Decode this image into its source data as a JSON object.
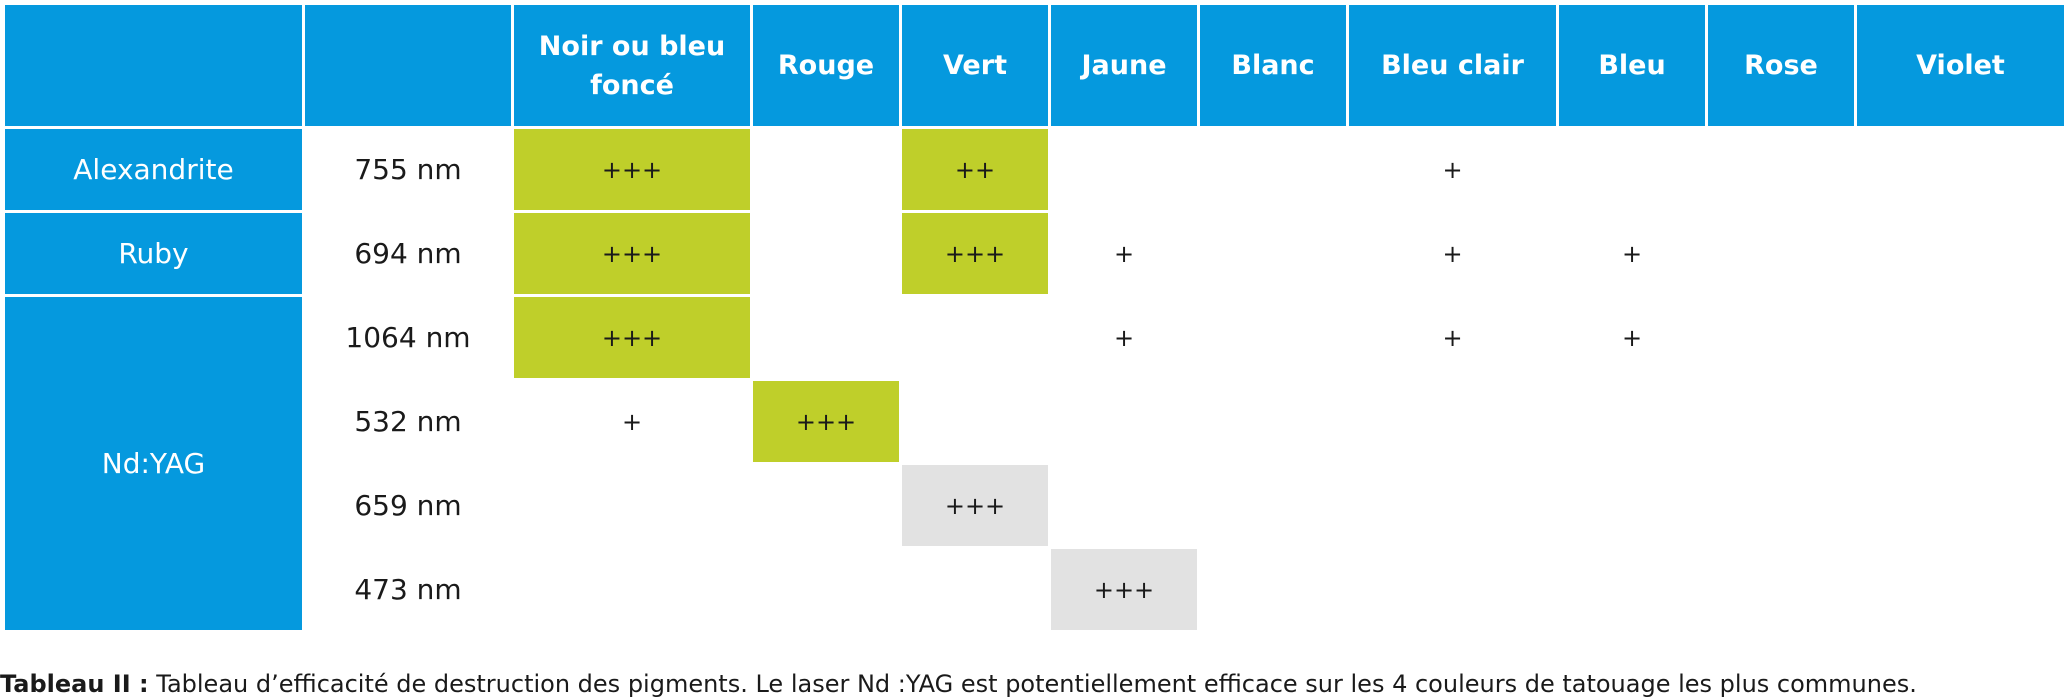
{
  "table": {
    "header_corner_1": "",
    "header_corner_2": "",
    "columns": [
      {
        "line1": "Noir ou bleu",
        "line2": "foncé"
      },
      {
        "line1": "Rouge",
        "line2": ""
      },
      {
        "line1": "Vert",
        "line2": ""
      },
      {
        "line1": "Jaune",
        "line2": ""
      },
      {
        "line1": "Blanc",
        "line2": ""
      },
      {
        "line1": "Bleu clair",
        "line2": ""
      },
      {
        "line1": "Bleu",
        "line2": ""
      },
      {
        "line1": "Rose",
        "line2": ""
      },
      {
        "line1": "Violet",
        "line2": ""
      }
    ],
    "lasers": {
      "alexandrite": "Alexandrite",
      "ruby": "Ruby",
      "ndyag": "Nd:YAG"
    },
    "rows": [
      {
        "wavelength": "755 nm",
        "cells": [
          "+++",
          "",
          "++",
          "",
          "",
          "+",
          "",
          "",
          ""
        ],
        "highlight": [
          "green",
          "",
          "green",
          "",
          "",
          "",
          "",
          "",
          ""
        ]
      },
      {
        "wavelength": "694 nm",
        "cells": [
          "+++",
          "",
          "+++",
          "+",
          "",
          "+",
          "+",
          "",
          ""
        ],
        "highlight": [
          "green",
          "",
          "green",
          "",
          "",
          "",
          "",
          "",
          ""
        ]
      },
      {
        "wavelength": "1064 nm",
        "cells": [
          "+++",
          "",
          "",
          "+",
          "",
          "+",
          "+",
          "",
          ""
        ],
        "highlight": [
          "green",
          "",
          "",
          "",
          "",
          "",
          "",
          "",
          ""
        ]
      },
      {
        "wavelength": "532 nm",
        "cells": [
          "+",
          "+++",
          "",
          "",
          "",
          "",
          "",
          "",
          ""
        ],
        "highlight": [
          "",
          "green",
          "",
          "",
          "",
          "",
          "",
          "",
          ""
        ]
      },
      {
        "wavelength": "659 nm",
        "cells": [
          "",
          "",
          "+++",
          "",
          "",
          "",
          "",
          "",
          ""
        ],
        "highlight": [
          "",
          "",
          "grey",
          "",
          "",
          "",
          "",
          "",
          ""
        ]
      },
      {
        "wavelength": "473 nm",
        "cells": [
          "",
          "",
          "",
          "+++",
          "",
          "",
          "",
          "",
          ""
        ],
        "highlight": [
          "",
          "",
          "",
          "grey",
          "",
          "",
          "",
          "",
          ""
        ]
      }
    ]
  },
  "caption": {
    "label": "Tableau II :",
    "text": "Tableau d’efficacité de destruction des pigments. Le laser Nd :YAG est potentiellement efficace sur les 4 couleurs de tatouage les plus communes."
  },
  "colors": {
    "header_blue": "#0599de",
    "highlight_green": "#bfcf2a",
    "highlight_grey": "#e2e2e2"
  }
}
